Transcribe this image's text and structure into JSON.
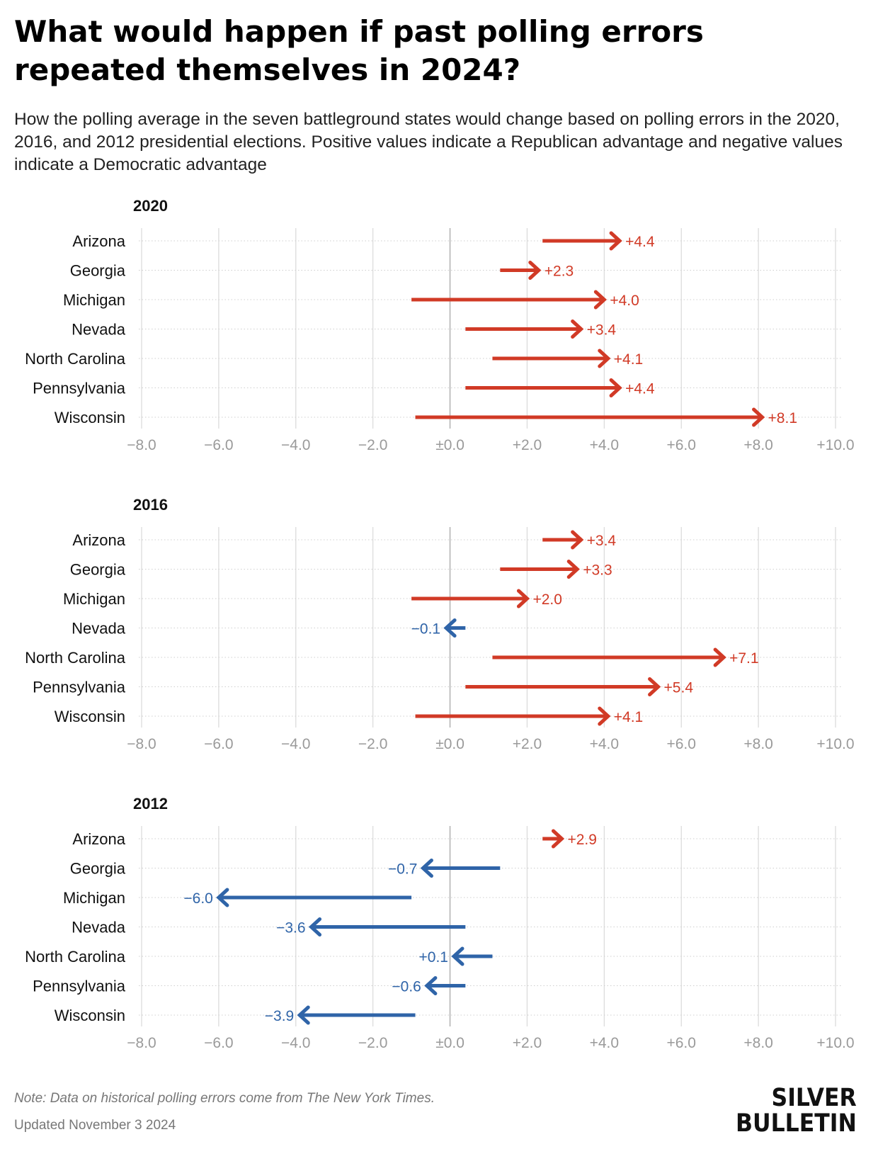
{
  "title": "What would happen if past polling errors repeated themselves in 2024?",
  "subtitle": "How the polling average in the seven battleground states would change based on polling errors in the 2020, 2016, and 2012 presidential elections. Positive values indicate a Republican advantage and negative values indicate a Democratic advantage",
  "note": "Note: Data on historical polling errors come from The New York Times.",
  "updated": "Updated November 3 2024",
  "logo": {
    "line1": "SILVER",
    "line2": "BULLETIN"
  },
  "colors": {
    "republican": "#d13a26",
    "democratic": "#2f64a8",
    "grid": "#d9d9d9",
    "tick": "#9a9a9a"
  },
  "chart_data": [
    {
      "type": "arrow",
      "title": "2020",
      "categories": [
        "Arizona",
        "Georgia",
        "Michigan",
        "Nevada",
        "North Carolina",
        "Pennsylvania",
        "Wisconsin"
      ],
      "start": [
        2.4,
        1.3,
        -1.0,
        0.4,
        1.1,
        0.4,
        -0.9
      ],
      "end": [
        4.4,
        2.3,
        4.0,
        3.4,
        4.1,
        4.4,
        8.1
      ],
      "labels": [
        "+4.4",
        "+2.3",
        "+4.0",
        "+3.4",
        "+4.1",
        "+4.4",
        "+8.1"
      ],
      "xlim": [
        -8,
        10
      ],
      "xticks": [
        "−8.0",
        "−6.0",
        "−4.0",
        "−2.0",
        "±0.0",
        "+2.0",
        "+4.0",
        "+6.0",
        "+8.0",
        "+10.0"
      ]
    },
    {
      "type": "arrow",
      "title": "2016",
      "categories": [
        "Arizona",
        "Georgia",
        "Michigan",
        "Nevada",
        "North Carolina",
        "Pennsylvania",
        "Wisconsin"
      ],
      "start": [
        2.4,
        1.3,
        -1.0,
        0.4,
        1.1,
        0.4,
        -0.9
      ],
      "end": [
        3.4,
        3.3,
        2.0,
        -0.1,
        7.1,
        5.4,
        4.1
      ],
      "labels": [
        "+3.4",
        "+3.3",
        "+2.0",
        "−0.1",
        "+7.1",
        "+5.4",
        "+4.1"
      ],
      "xlim": [
        -8,
        10
      ],
      "xticks": [
        "−8.0",
        "−6.0",
        "−4.0",
        "−2.0",
        "±0.0",
        "+2.0",
        "+4.0",
        "+6.0",
        "+8.0",
        "+10.0"
      ]
    },
    {
      "type": "arrow",
      "title": "2012",
      "categories": [
        "Arizona",
        "Georgia",
        "Michigan",
        "Nevada",
        "North Carolina",
        "Pennsylvania",
        "Wisconsin"
      ],
      "start": [
        2.4,
        1.3,
        -1.0,
        0.4,
        1.1,
        0.4,
        -0.9
      ],
      "end": [
        2.9,
        -0.7,
        -6.0,
        -3.6,
        0.1,
        -0.6,
        -3.9
      ],
      "labels": [
        "+2.9",
        "−0.7",
        "−6.0",
        "−3.6",
        "+0.1",
        "−0.6",
        "−3.9"
      ],
      "xlim": [
        -8,
        10
      ],
      "xticks": [
        "−8.0",
        "−6.0",
        "−4.0",
        "−2.0",
        "±0.0",
        "+2.0",
        "+4.0",
        "+6.0",
        "+8.0",
        "+10.0"
      ]
    }
  ]
}
